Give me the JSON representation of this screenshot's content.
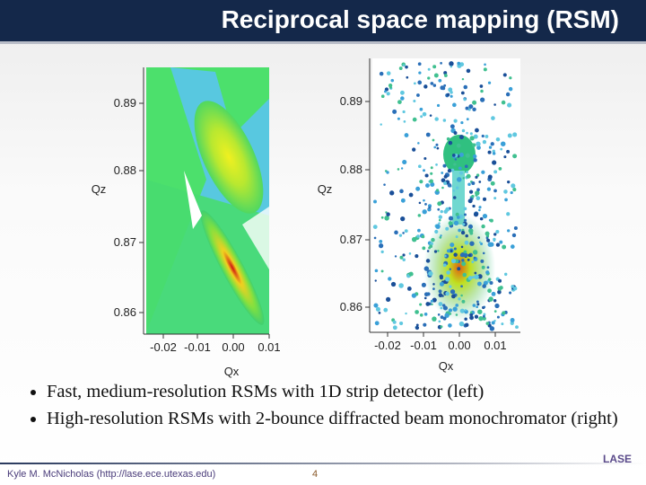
{
  "header": {
    "title": "Reciprocal space mapping (RSM)"
  },
  "figures": [
    {
      "y_label": "Qz",
      "x_label": "Qx",
      "yticks": [
        "0.89",
        "0.88",
        "0.87",
        "0.86"
      ],
      "xticks": [
        "-0.02",
        "-0.01",
        "0.00",
        "0.01"
      ]
    },
    {
      "y_label": "Qz",
      "x_label": "Qx",
      "yticks": [
        "0.89",
        "0.88",
        "0.87",
        "0.86"
      ],
      "xticks": [
        "-0.02",
        "-0.01",
        "0.00",
        "0.01"
      ]
    }
  ],
  "bullets": [
    "Fast, medium-resolution RSMs with 1D strip detector (left)",
    "High-resolution RSMs with 2-bounce diffracted beam monochromator (right)"
  ],
  "footer": {
    "author": "Kyle M. McNicholas (http://lase.ece.utexas.edu)",
    "page": "4",
    "logo": "LASE"
  }
}
